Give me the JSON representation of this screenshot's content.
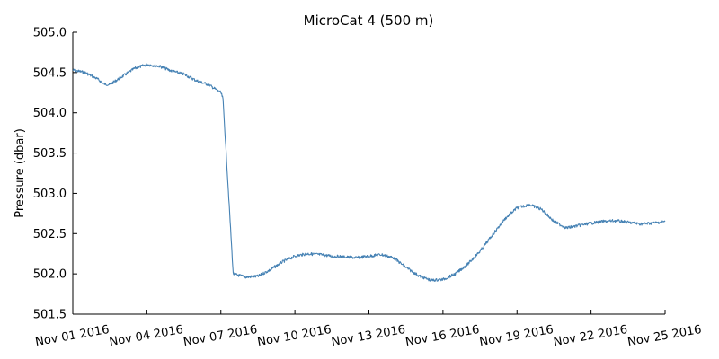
{
  "chart_data": {
    "type": "line",
    "title": "MicroCat 4 (500 m)",
    "xlabel": "",
    "ylabel": "Pressure (dbar)",
    "xlim": [
      "2016-11-01",
      "2016-11-25"
    ],
    "ylim": [
      501.5,
      505.0
    ],
    "grid": false,
    "line_color": "#4682b4",
    "x_ticks": [
      "2016-11-01",
      "2016-11-04",
      "2016-11-07",
      "2016-11-10",
      "2016-11-13",
      "2016-11-16",
      "2016-11-19",
      "2016-11-22",
      "2016-11-25"
    ],
    "x_tick_labels": [
      "Nov 01 2016",
      "Nov 04 2016",
      "Nov 07 2016",
      "Nov 10 2016",
      "Nov 13 2016",
      "Nov 16 2016",
      "Nov 19 2016",
      "Nov 22 2016",
      "Nov 25 2016"
    ],
    "y_ticks": [
      501.5,
      502.0,
      502.5,
      503.0,
      503.5,
      504.0,
      504.5,
      505.0
    ],
    "y_tick_labels": [
      "501.5",
      "502.0",
      "502.5",
      "503.0",
      "503.5",
      "504.0",
      "504.5",
      "505.0"
    ],
    "series": [
      {
        "x": [
          "2016-11-01T00:00",
          "2016-11-01T12:00",
          "2016-11-02T00:00",
          "2016-11-02T06:00",
          "2016-11-02T12:00",
          "2016-11-03T00:00",
          "2016-11-03T12:00",
          "2016-11-04T00:00",
          "2016-11-04T12:00",
          "2016-11-05T00:00",
          "2016-11-05T12:00",
          "2016-11-06T00:00",
          "2016-11-06T12:00",
          "2016-11-07T00:00",
          "2016-11-07T02:00",
          "2016-11-07T02:10",
          "2016-11-07T12:00",
          "2016-11-08T00:00",
          "2016-11-08T12:00",
          "2016-11-09T00:00",
          "2016-11-09T12:00",
          "2016-11-10T00:00",
          "2016-11-10T12:00",
          "2016-11-11T00:00",
          "2016-11-11T12:00",
          "2016-11-12T00:00",
          "2016-11-12T12:00",
          "2016-11-13T00:00",
          "2016-11-13T12:00",
          "2016-11-14T00:00",
          "2016-11-14T12:00",
          "2016-11-15T00:00",
          "2016-11-15T12:00",
          "2016-11-16T00:00",
          "2016-11-16T12:00",
          "2016-11-17T00:00",
          "2016-11-17T12:00",
          "2016-11-18T00:00",
          "2016-11-18T12:00",
          "2016-11-19T00:00",
          "2016-11-19T12:00",
          "2016-11-20T00:00",
          "2016-11-20T12:00",
          "2016-11-21T00:00",
          "2016-11-21T12:00",
          "2016-11-22T00:00",
          "2016-11-22T12:00",
          "2016-11-23T00:00",
          "2016-11-23T12:00",
          "2016-11-24T00:00",
          "2016-11-24T12:00",
          "2016-11-25T00:00"
        ],
        "y": [
          504.53,
          504.5,
          504.42,
          504.36,
          504.35,
          504.45,
          504.55,
          504.6,
          504.58,
          504.52,
          504.48,
          504.4,
          504.35,
          504.25,
          504.18,
          504.15,
          502.0,
          501.96,
          501.97,
          502.05,
          502.15,
          502.22,
          502.25,
          502.24,
          502.22,
          502.21,
          502.2,
          502.22,
          502.24,
          502.2,
          502.08,
          501.98,
          501.92,
          501.93,
          502.0,
          502.12,
          502.28,
          502.48,
          502.68,
          502.82,
          502.86,
          502.8,
          502.65,
          502.57,
          502.6,
          502.63,
          502.65,
          502.66,
          502.64,
          502.62,
          502.63,
          502.65
        ]
      }
    ]
  }
}
